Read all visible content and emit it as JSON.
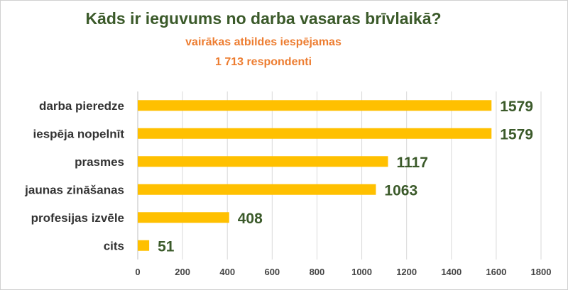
{
  "chart_data": {
    "type": "bar",
    "orientation": "horizontal",
    "title": "Kāds ir ieguvums no darba vasaras brīvlaikā?",
    "subtitle": [
      "vairākas atbildes iespējamas",
      "1 713 respondenti"
    ],
    "categories": [
      "darba pieredze",
      "iespēja nopelnīt",
      "prasmes",
      "jaunas zināšanas",
      "profesijas izvēle",
      "cits"
    ],
    "values": [
      1579,
      1579,
      1117,
      1063,
      408,
      51
    ],
    "xlim": [
      0,
      1800
    ],
    "xticks": [
      0,
      200,
      400,
      600,
      800,
      1000,
      1200,
      1400,
      1600,
      1800
    ],
    "grid": "vertical",
    "legend": "none",
    "bar_color": "#ffc000",
    "value_label_color": "#3b5a2a",
    "title_color": "#3b5a2a",
    "subtitle_color": "#ed7d31"
  }
}
